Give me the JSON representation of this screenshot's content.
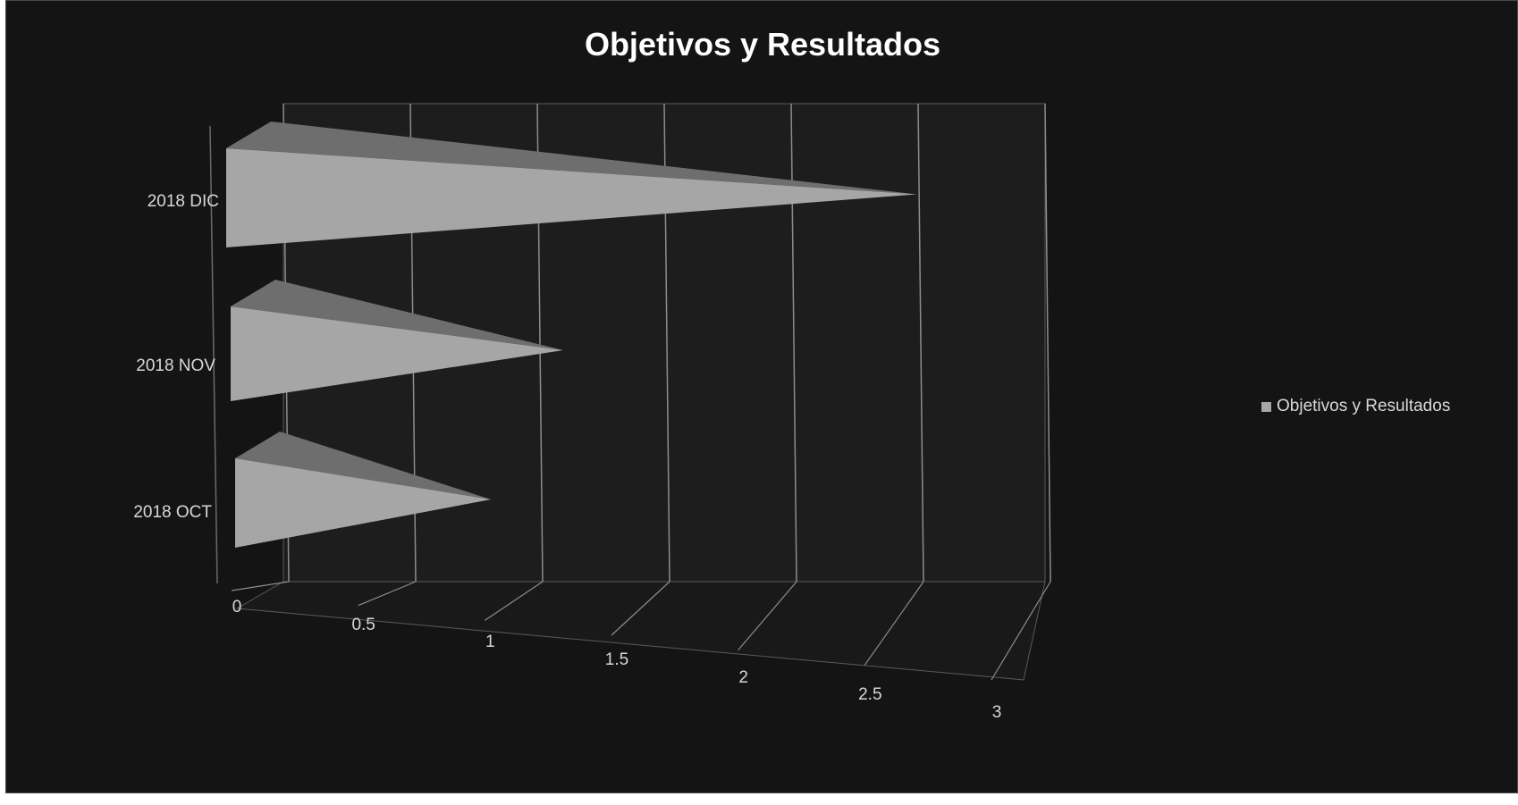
{
  "chart_data": {
    "type": "bar",
    "orientation": "horizontal",
    "style": "3d-pyramid",
    "title": "Objetivos y Resultados",
    "categories": [
      "2018 OCT",
      "2018 NOV",
      "2018 DIC"
    ],
    "series": [
      {
        "name": "Objetivos y Resultados",
        "values": [
          1,
          1.3,
          2.7
        ]
      }
    ],
    "x_ticks": [
      "0",
      "0.5",
      "1",
      "1.5",
      "2",
      "2.5",
      "3"
    ],
    "xlim": [
      0,
      3
    ],
    "grid": true,
    "legend_position": "right",
    "colors": {
      "background": "#141414",
      "bar": "#a6a6a6",
      "text": "#d8d8d8",
      "title": "#ffffff",
      "grid": "#8c8c8c"
    }
  }
}
